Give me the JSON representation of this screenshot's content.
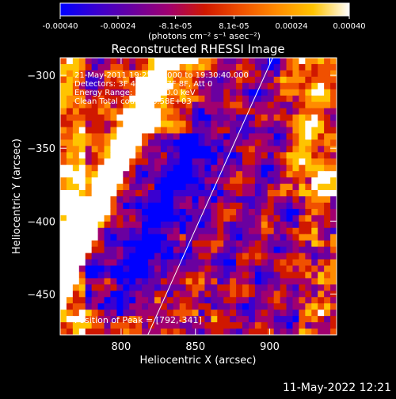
{
  "colorbar": {
    "ticks": [
      "-0.00040",
      "-0.00024",
      "-8.1e-05",
      "8.1e-05",
      "0.00024",
      "0.00040"
    ],
    "tick_values": [
      -0.0004,
      -0.00024,
      -8.1e-05,
      8.1e-05,
      0.00024,
      0.0004
    ],
    "range": [
      -0.0004,
      0.0004
    ],
    "units": "(photons cm⁻² s⁻¹ asec⁻²)",
    "colors": [
      "#0000ff",
      "#3a00d0",
      "#6a00a0",
      "#a00070",
      "#d01800",
      "#f05000",
      "#ff8c00",
      "#ffc400",
      "#ffffff"
    ]
  },
  "chart_data": {
    "type": "heatmap",
    "title": "Reconstructed RHESSI Image",
    "xlabel": "Heliocentric X (arcsec)",
    "ylabel": "Heliocentric Y (arcsec)",
    "x_range": [
      759,
      945
    ],
    "y_range": [
      -478,
      -288
    ],
    "xticks": [
      800,
      850,
      900
    ],
    "yticks": [
      -300,
      -350,
      -400,
      -450
    ],
    "limb_line": {
      "from": [
        818,
        -478
      ],
      "to": [
        902,
        -288
      ]
    },
    "peak": {
      "x": 792,
      "y": -341
    },
    "grid": false,
    "info_lines": [
      "21-May-2011 19:25:40.000 to 19:30:40.000",
      "Detectors: 3F 4F 5F 6F 7F 8F, Att 0",
      "Energy Range: 25.0 - 50.0 keV",
      "Clean   Total counts: 6.58E+03"
    ],
    "peak_label": "Position of Peak = [792,-341]"
  },
  "footer": {
    "timestamp": "11-May-2022 12:21"
  }
}
